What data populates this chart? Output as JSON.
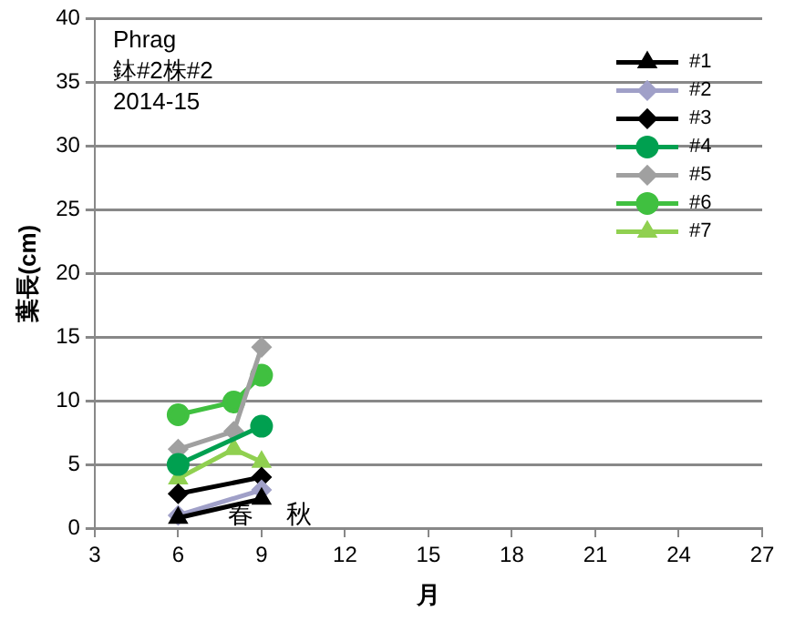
{
  "chart_data": {
    "type": "line",
    "xlabel": "月",
    "ylabel": "葉長(cm)",
    "annotations": [
      "Phrag",
      "鉢#2株#2",
      "2014-15",
      "春",
      "秋"
    ],
    "xlim": [
      3,
      27
    ],
    "xticks": [
      3,
      6,
      9,
      12,
      15,
      18,
      21,
      24,
      27
    ],
    "ylim": [
      0,
      40
    ],
    "yticks": [
      0,
      5,
      10,
      15,
      20,
      25,
      30,
      35,
      40
    ],
    "grid": "y",
    "legend": "top right",
    "series": [
      {
        "name": "#1",
        "color": "#000000",
        "marker": "triangle",
        "x": [
          6,
          9
        ],
        "values": [
          0.8,
          2.3
        ]
      },
      {
        "name": "#2",
        "color": "#a0a0c8",
        "marker": "diamond",
        "x": [
          6,
          9
        ],
        "values": [
          1.0,
          3.0
        ]
      },
      {
        "name": "#3",
        "color": "#000000",
        "marker": "diamond",
        "x": [
          6,
          9
        ],
        "values": [
          2.7,
          4.0
        ]
      },
      {
        "name": "#4",
        "color": "#00a050",
        "marker": "circle",
        "x": [
          6,
          9
        ],
        "values": [
          5.0,
          8.0
        ]
      },
      {
        "name": "#5",
        "color": "#a0a0a0",
        "marker": "diamond",
        "x": [
          6,
          8,
          9
        ],
        "values": [
          6.2,
          7.6,
          14.2
        ]
      },
      {
        "name": "#6",
        "color": "#40c040",
        "marker": "circle",
        "x": [
          6,
          8,
          9
        ],
        "values": [
          8.9,
          9.9,
          12.0
        ]
      },
      {
        "name": "#7",
        "color": "#90d050",
        "marker": "triangle",
        "x": [
          6,
          8,
          9
        ],
        "values": [
          3.9,
          6.2,
          5.2
        ]
      }
    ]
  }
}
